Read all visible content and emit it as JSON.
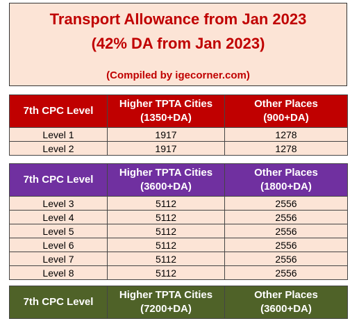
{
  "title": {
    "line1": "Transport Allowance from Jan 2023",
    "line2": "(42% DA from Jan 2023)",
    "credit": "(Compiled by igecorner.com)"
  },
  "colors": {
    "title_bg": "#fce4d6",
    "title_text": "#c00000",
    "cell_bg": "#fce4d6",
    "group1_header": "#c00000",
    "group2_header": "#7030a0",
    "group3_header": "#4f6228"
  },
  "groups": [
    {
      "header": {
        "col1": "7th CPC Level",
        "col2a": "Higher TPTA Cities",
        "col2b": "(1350+DA)",
        "col3a": "Other Places",
        "col3b": "(900+DA)"
      },
      "rows": [
        {
          "level": "Level 1",
          "higher": "1917",
          "other": "1278"
        },
        {
          "level": "Level 2",
          "higher": "1917",
          "other": "1278"
        }
      ]
    },
    {
      "header": {
        "col1": "7th CPC Level",
        "col2a": "Higher TPTA Cities",
        "col2b": "(3600+DA)",
        "col3a": "Other Places",
        "col3b": "(1800+DA)"
      },
      "rows": [
        {
          "level": "Level 3",
          "higher": "5112",
          "other": "2556"
        },
        {
          "level": "Level 4",
          "higher": "5112",
          "other": "2556"
        },
        {
          "level": "Level 5",
          "higher": "5112",
          "other": "2556"
        },
        {
          "level": "Level 6",
          "higher": "5112",
          "other": "2556"
        },
        {
          "level": "Level 7",
          "higher": "5112",
          "other": "2556"
        },
        {
          "level": "Level 8",
          "higher": "5112",
          "other": "2556"
        }
      ]
    },
    {
      "header": {
        "col1": "7th CPC Level",
        "col2a": "Higher TPTA Cities",
        "col2b": "(7200+DA)",
        "col3a": "Other Places",
        "col3b": "(3600+DA)"
      },
      "rows": []
    }
  ]
}
